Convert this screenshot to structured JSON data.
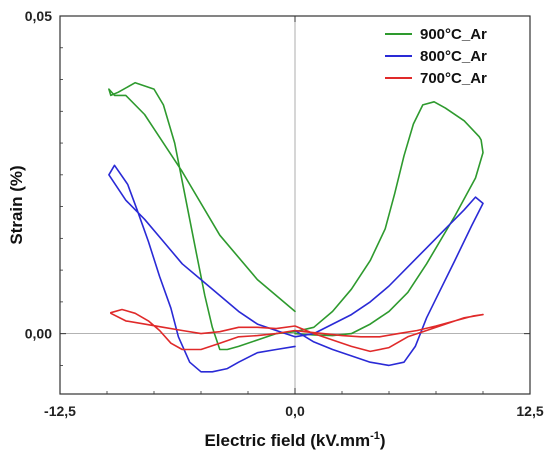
{
  "chart_data": {
    "type": "line",
    "xlabel": "Electric field (kV.mm",
    "xlabel_superscript": "-1",
    "xlabel_suffix": ")",
    "ylabel": "Strain (%)",
    "xlim": [
      -12.5,
      12.5
    ],
    "ylim": [
      -0.0095,
      0.05
    ],
    "x_ticks": [
      {
        "value": -12.5,
        "label": "-12,5"
      },
      {
        "value": 0.0,
        "label": "0,0"
      },
      {
        "value": 12.5,
        "label": "12,5"
      }
    ],
    "y_ticks": [
      {
        "value": 0.0,
        "label": "0,00"
      },
      {
        "value": 0.05,
        "label": "0,05"
      }
    ],
    "y_minor_ticks": [
      -0.005,
      0.005,
      0.01,
      0.015,
      0.02,
      0.025,
      0.03,
      0.035,
      0.04,
      0.045
    ],
    "x_minor_ticks": [
      -10,
      -7.5,
      -5,
      -2.5,
      2.5,
      5,
      7.5,
      10
    ],
    "zero_lines": true,
    "legend_position": "top-right",
    "series": [
      {
        "name": "900°C_Ar",
        "color": "#2e9a2e",
        "points": [
          [
            0.0,
            0.0035
          ],
          [
            -2.0,
            0.0085
          ],
          [
            -4.0,
            0.0155
          ],
          [
            -6.0,
            0.0255
          ],
          [
            -8.0,
            0.0345
          ],
          [
            -9.0,
            0.0375
          ],
          [
            -9.6,
            0.0375
          ],
          [
            -9.9,
            0.0385
          ],
          [
            -9.8,
            0.0375
          ],
          [
            -9.4,
            0.038
          ],
          [
            -8.5,
            0.0395
          ],
          [
            -7.5,
            0.0385
          ],
          [
            -7.0,
            0.036
          ],
          [
            -6.4,
            0.03
          ],
          [
            -6.0,
            0.024
          ],
          [
            -5.6,
            0.018
          ],
          [
            -5.2,
            0.012
          ],
          [
            -4.8,
            0.006
          ],
          [
            -4.4,
            0.001
          ],
          [
            -4.0,
            -0.0025
          ],
          [
            -3.6,
            -0.0025
          ],
          [
            -3.0,
            -0.002
          ],
          [
            -2.0,
            -0.001
          ],
          [
            -1.0,
            0.0
          ],
          [
            0.0,
            0.0003
          ],
          [
            1.0,
            0.001
          ],
          [
            2.0,
            0.0035
          ],
          [
            3.0,
            0.007
          ],
          [
            4.0,
            0.0115
          ],
          [
            4.8,
            0.0165
          ],
          [
            5.3,
            0.022
          ],
          [
            5.8,
            0.028
          ],
          [
            6.3,
            0.033
          ],
          [
            6.8,
            0.036
          ],
          [
            7.4,
            0.0365
          ],
          [
            8.0,
            0.0355
          ],
          [
            9.0,
            0.0335
          ],
          [
            9.8,
            0.031
          ],
          [
            9.9,
            0.0305
          ],
          [
            10.0,
            0.0285
          ],
          [
            9.6,
            0.0245
          ],
          [
            8.5,
            0.0185
          ],
          [
            7.0,
            0.011
          ],
          [
            6.0,
            0.0065
          ],
          [
            5.0,
            0.0035
          ],
          [
            4.0,
            0.0015
          ],
          [
            3.0,
            0.0
          ],
          [
            2.0,
            -0.0003
          ],
          [
            1.0,
            -0.0002
          ],
          [
            0.0,
            0.0
          ]
        ]
      },
      {
        "name": "800°C_Ar",
        "color": "#2a2ad6",
        "points": [
          [
            0.0,
            -0.002
          ],
          [
            -1.0,
            -0.0025
          ],
          [
            -2.0,
            -0.003
          ],
          [
            -3.0,
            -0.0045
          ],
          [
            -3.6,
            -0.0055
          ],
          [
            -4.4,
            -0.006
          ],
          [
            -5.0,
            -0.006
          ],
          [
            -5.6,
            -0.0045
          ],
          [
            -6.2,
            -0.0005
          ],
          [
            -6.6,
            0.004
          ],
          [
            -7.2,
            0.009
          ],
          [
            -7.8,
            0.0145
          ],
          [
            -8.4,
            0.0195
          ],
          [
            -8.9,
            0.0235
          ],
          [
            -9.6,
            0.0265
          ],
          [
            -9.9,
            0.025
          ],
          [
            -9.0,
            0.021
          ],
          [
            -8.0,
            0.018
          ],
          [
            -7.0,
            0.0145
          ],
          [
            -6.0,
            0.011
          ],
          [
            -5.0,
            0.0085
          ],
          [
            -4.0,
            0.006
          ],
          [
            -3.0,
            0.0035
          ],
          [
            -2.0,
            0.0015
          ],
          [
            -1.0,
            0.0005
          ],
          [
            0.0,
            -0.0005
          ],
          [
            1.0,
            0.0
          ],
          [
            2.0,
            0.0015
          ],
          [
            3.0,
            0.003
          ],
          [
            4.0,
            0.005
          ],
          [
            5.0,
            0.0075
          ],
          [
            6.0,
            0.0105
          ],
          [
            7.0,
            0.0135
          ],
          [
            8.0,
            0.0165
          ],
          [
            9.0,
            0.0195
          ],
          [
            9.6,
            0.0215
          ],
          [
            10.0,
            0.0205
          ],
          [
            9.4,
            0.017
          ],
          [
            8.5,
            0.0115
          ],
          [
            7.5,
            0.0055
          ],
          [
            7.0,
            0.0025
          ],
          [
            6.4,
            -0.002
          ],
          [
            5.8,
            -0.0045
          ],
          [
            5.0,
            -0.005
          ],
          [
            4.0,
            -0.0045
          ],
          [
            3.0,
            -0.0035
          ],
          [
            2.0,
            -0.0025
          ],
          [
            1.0,
            -0.0013
          ],
          [
            0.0,
            0.0005
          ]
        ]
      },
      {
        "name": "700°C_Ar",
        "color": "#e02a2a",
        "points": [
          [
            0.0,
            0.0005
          ],
          [
            -1.0,
            0.0
          ],
          [
            -2.0,
            -0.0003
          ],
          [
            -3.0,
            -0.0005
          ],
          [
            -4.0,
            -0.0015
          ],
          [
            -5.0,
            -0.0025
          ],
          [
            -6.0,
            -0.0025
          ],
          [
            -6.6,
            -0.0015
          ],
          [
            -7.2,
            0.0005
          ],
          [
            -7.8,
            0.002
          ],
          [
            -8.5,
            0.0032
          ],
          [
            -9.2,
            0.0038
          ],
          [
            -9.8,
            0.0033
          ],
          [
            -9.8,
            0.0032
          ],
          [
            -9.0,
            0.002
          ],
          [
            -8.0,
            0.0015
          ],
          [
            -7.0,
            0.001
          ],
          [
            -6.0,
            0.0005
          ],
          [
            -5.0,
            0.0
          ],
          [
            -4.0,
            0.0003
          ],
          [
            -3.0,
            0.001
          ],
          [
            -2.0,
            0.001
          ],
          [
            -1.0,
            0.0008
          ],
          [
            0.0,
            0.0012
          ],
          [
            1.0,
            0.0
          ],
          [
            2.0,
            -0.001
          ],
          [
            3.0,
            -0.002
          ],
          [
            4.0,
            -0.0028
          ],
          [
            5.0,
            -0.0022
          ],
          [
            6.0,
            -0.0005
          ],
          [
            7.0,
            0.0005
          ],
          [
            8.0,
            0.0015
          ],
          [
            9.0,
            0.0025
          ],
          [
            10.0,
            0.003
          ],
          [
            9.5,
            0.0028
          ],
          [
            8.5,
            0.002
          ],
          [
            7.5,
            0.0012
          ],
          [
            6.5,
            0.0005
          ],
          [
            5.5,
            0.0
          ],
          [
            4.5,
            -0.0005
          ],
          [
            3.5,
            -0.0005
          ],
          [
            2.5,
            -0.0003
          ],
          [
            1.5,
            0.0
          ],
          [
            0.5,
            0.0003
          ],
          [
            0.0,
            0.0005
          ]
        ]
      }
    ]
  }
}
